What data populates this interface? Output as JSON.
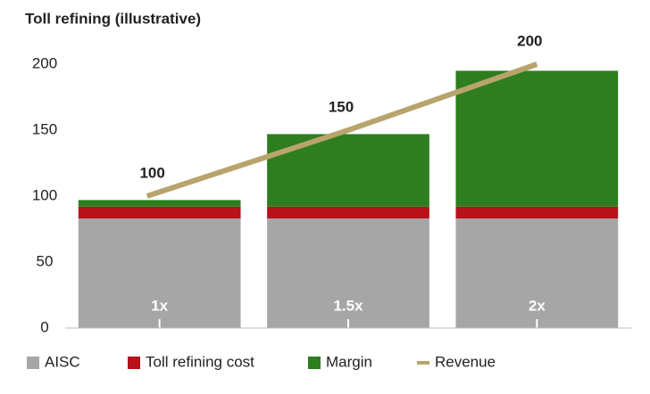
{
  "chart_data": {
    "type": "bar",
    "stacked": true,
    "title": "Toll refining (illustrative)",
    "categories": [
      "1x",
      "1.5x",
      "2x"
    ],
    "series": [
      {
        "name": "AISC",
        "color": "#a6a6a6",
        "values": [
          83,
          83,
          83
        ]
      },
      {
        "name": "Toll refining cost",
        "color": "#b5121b",
        "values": [
          9,
          9,
          9
        ]
      },
      {
        "name": "Margin",
        "color": "#2e7d1f",
        "values": [
          5,
          55,
          103
        ]
      },
      {
        "name": "Revenue",
        "type": "line",
        "color": "#b8a46c",
        "values": [
          100,
          150,
          200
        ]
      }
    ],
    "ylim": [
      0,
      200
    ],
    "yticks": [
      0,
      50,
      100,
      150,
      200
    ],
    "grid": false,
    "legend": "bottom"
  }
}
